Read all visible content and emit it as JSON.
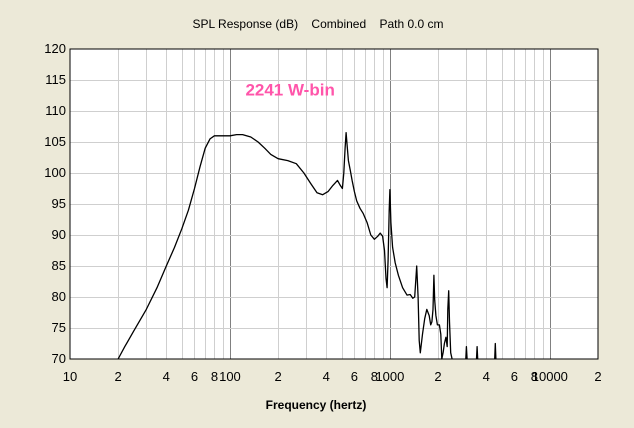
{
  "chart_data": {
    "type": "line",
    "title": "SPL Response (dB)    Combined    Path 0.0 cm",
    "xlabel": "Frequency (hertz)",
    "ylabel": "",
    "x_scale": "log",
    "xlim": [
      10,
      20000
    ],
    "ylim": [
      70,
      120
    ],
    "y_ticks": [
      120,
      115,
      110,
      105,
      100,
      95,
      90,
      85,
      80,
      75,
      70
    ],
    "x_tick_labels": [
      {
        "value": 10,
        "label": "10"
      },
      {
        "value": 20,
        "label": "2"
      },
      {
        "value": 40,
        "label": "4"
      },
      {
        "value": 60,
        "label": "6"
      },
      {
        "value": 80,
        "label": "8"
      },
      {
        "value": 100,
        "label": "100"
      },
      {
        "value": 200,
        "label": "2"
      },
      {
        "value": 400,
        "label": "4"
      },
      {
        "value": 600,
        "label": "6"
      },
      {
        "value": 800,
        "label": "8"
      },
      {
        "value": 1000,
        "label": "1000"
      },
      {
        "value": 2000,
        "label": "2"
      },
      {
        "value": 4000,
        "label": "4"
      },
      {
        "value": 6000,
        "label": "6"
      },
      {
        "value": 8000,
        "label": "8"
      },
      {
        "value": 10000,
        "label": "10000"
      },
      {
        "value": 20000,
        "label": "2"
      }
    ],
    "grid": true,
    "annotation": {
      "text": "2241 W-bin",
      "color": "#ff55aa",
      "x": 125,
      "y": 112.5
    },
    "series": [
      {
        "color": "#000000",
        "points": [
          [
            20,
            70
          ],
          [
            22,
            72
          ],
          [
            25,
            74.5
          ],
          [
            30,
            78
          ],
          [
            35,
            81.5
          ],
          [
            40,
            85
          ],
          [
            45,
            88
          ],
          [
            50,
            91
          ],
          [
            55,
            94
          ],
          [
            60,
            97.5
          ],
          [
            65,
            101
          ],
          [
            70,
            104
          ],
          [
            75,
            105.5
          ],
          [
            80,
            106
          ],
          [
            90,
            106
          ],
          [
            100,
            106
          ],
          [
            110,
            106.2
          ],
          [
            120,
            106.2
          ],
          [
            135,
            105.8
          ],
          [
            150,
            105
          ],
          [
            165,
            104
          ],
          [
            180,
            103
          ],
          [
            200,
            102.3
          ],
          [
            230,
            102
          ],
          [
            260,
            101.5
          ],
          [
            290,
            100
          ],
          [
            320,
            98.3
          ],
          [
            350,
            96.8
          ],
          [
            380,
            96.5
          ],
          [
            410,
            97
          ],
          [
            440,
            98
          ],
          [
            470,
            98.8
          ],
          [
            490,
            98
          ],
          [
            505,
            97.5
          ],
          [
            515,
            100
          ],
          [
            525,
            104
          ],
          [
            532,
            106.5
          ],
          [
            540,
            104.5
          ],
          [
            550,
            102
          ],
          [
            565,
            100.5
          ],
          [
            580,
            98.8
          ],
          [
            600,
            97
          ],
          [
            620,
            95.5
          ],
          [
            650,
            94.3
          ],
          [
            680,
            93.5
          ],
          [
            720,
            92
          ],
          [
            760,
            90
          ],
          [
            800,
            89.3
          ],
          [
            840,
            89.8
          ],
          [
            870,
            90.3
          ],
          [
            900,
            89.8
          ],
          [
            925,
            87.5
          ],
          [
            945,
            83
          ],
          [
            960,
            81.5
          ],
          [
            975,
            86
          ],
          [
            990,
            94
          ],
          [
            1000,
            97.3
          ],
          [
            1015,
            92
          ],
          [
            1040,
            88
          ],
          [
            1080,
            85.5
          ],
          [
            1130,
            83.5
          ],
          [
            1200,
            81.5
          ],
          [
            1280,
            80.3
          ],
          [
            1340,
            80.4
          ],
          [
            1390,
            79.8
          ],
          [
            1430,
            80
          ],
          [
            1470,
            85
          ],
          [
            1500,
            80
          ],
          [
            1525,
            73
          ],
          [
            1550,
            71
          ],
          [
            1600,
            74
          ],
          [
            1650,
            76.5
          ],
          [
            1700,
            78
          ],
          [
            1760,
            77
          ],
          [
            1800,
            75.5
          ],
          [
            1830,
            76
          ],
          [
            1860,
            78
          ],
          [
            1885,
            83.5
          ],
          [
            1905,
            79.5
          ],
          [
            1940,
            77
          ],
          [
            1980,
            75.5
          ],
          [
            2040,
            75.5
          ],
          [
            2080,
            74
          ],
          [
            2110,
            70
          ],
          [
            2150,
            71
          ],
          [
            2190,
            72.5
          ],
          [
            2240,
            73.5
          ],
          [
            2280,
            72
          ],
          [
            2300,
            78
          ],
          [
            2330,
            81
          ],
          [
            2360,
            76
          ],
          [
            2400,
            71
          ],
          [
            2450,
            70
          ]
        ]
      },
      {
        "color": "#000000",
        "points": [
          [
            2980,
            70
          ],
          [
            3010,
            72
          ],
          [
            3040,
            70
          ]
        ]
      },
      {
        "color": "#000000",
        "points": [
          [
            3480,
            70
          ],
          [
            3510,
            72
          ],
          [
            3540,
            70
          ]
        ]
      },
      {
        "color": "#000000",
        "points": [
          [
            4520,
            70
          ],
          [
            4560,
            72.5
          ],
          [
            4600,
            70
          ]
        ]
      }
    ]
  }
}
